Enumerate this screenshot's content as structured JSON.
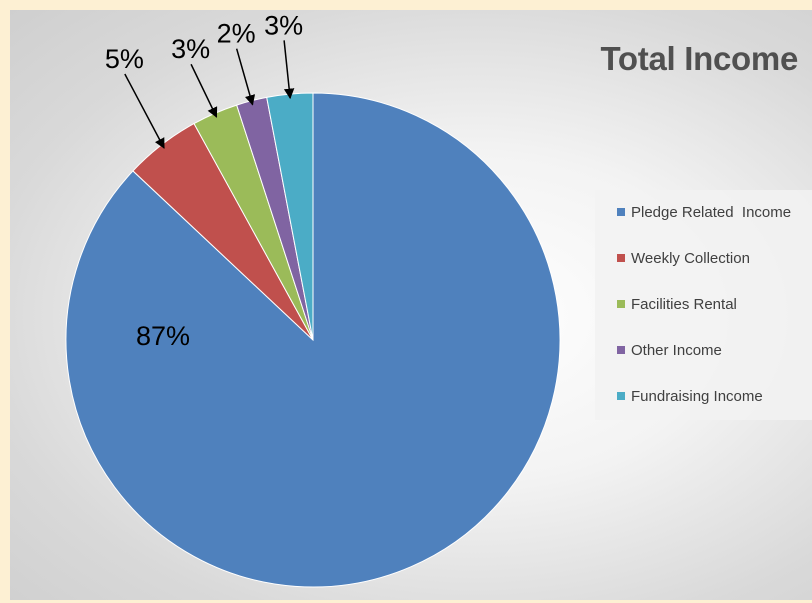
{
  "chart_data": {
    "type": "pie",
    "title": "Total Income",
    "legend_position": "right",
    "slices": [
      {
        "name": "Pledge Related  Income",
        "value": 87,
        "label": "87%",
        "color": "#4f81bd"
      },
      {
        "name": "Weekly Collection",
        "value": 5,
        "label": "5%",
        "color": "#c0504d"
      },
      {
        "name": "Facilities Rental",
        "value": 3,
        "label": "3%",
        "color": "#9bbb59"
      },
      {
        "name": "Other Income",
        "value": 2,
        "label": "2%",
        "color": "#8064a2"
      },
      {
        "name": "Fundraising Income",
        "value": 3,
        "label": "3%",
        "color": "#4bacc6"
      }
    ]
  }
}
